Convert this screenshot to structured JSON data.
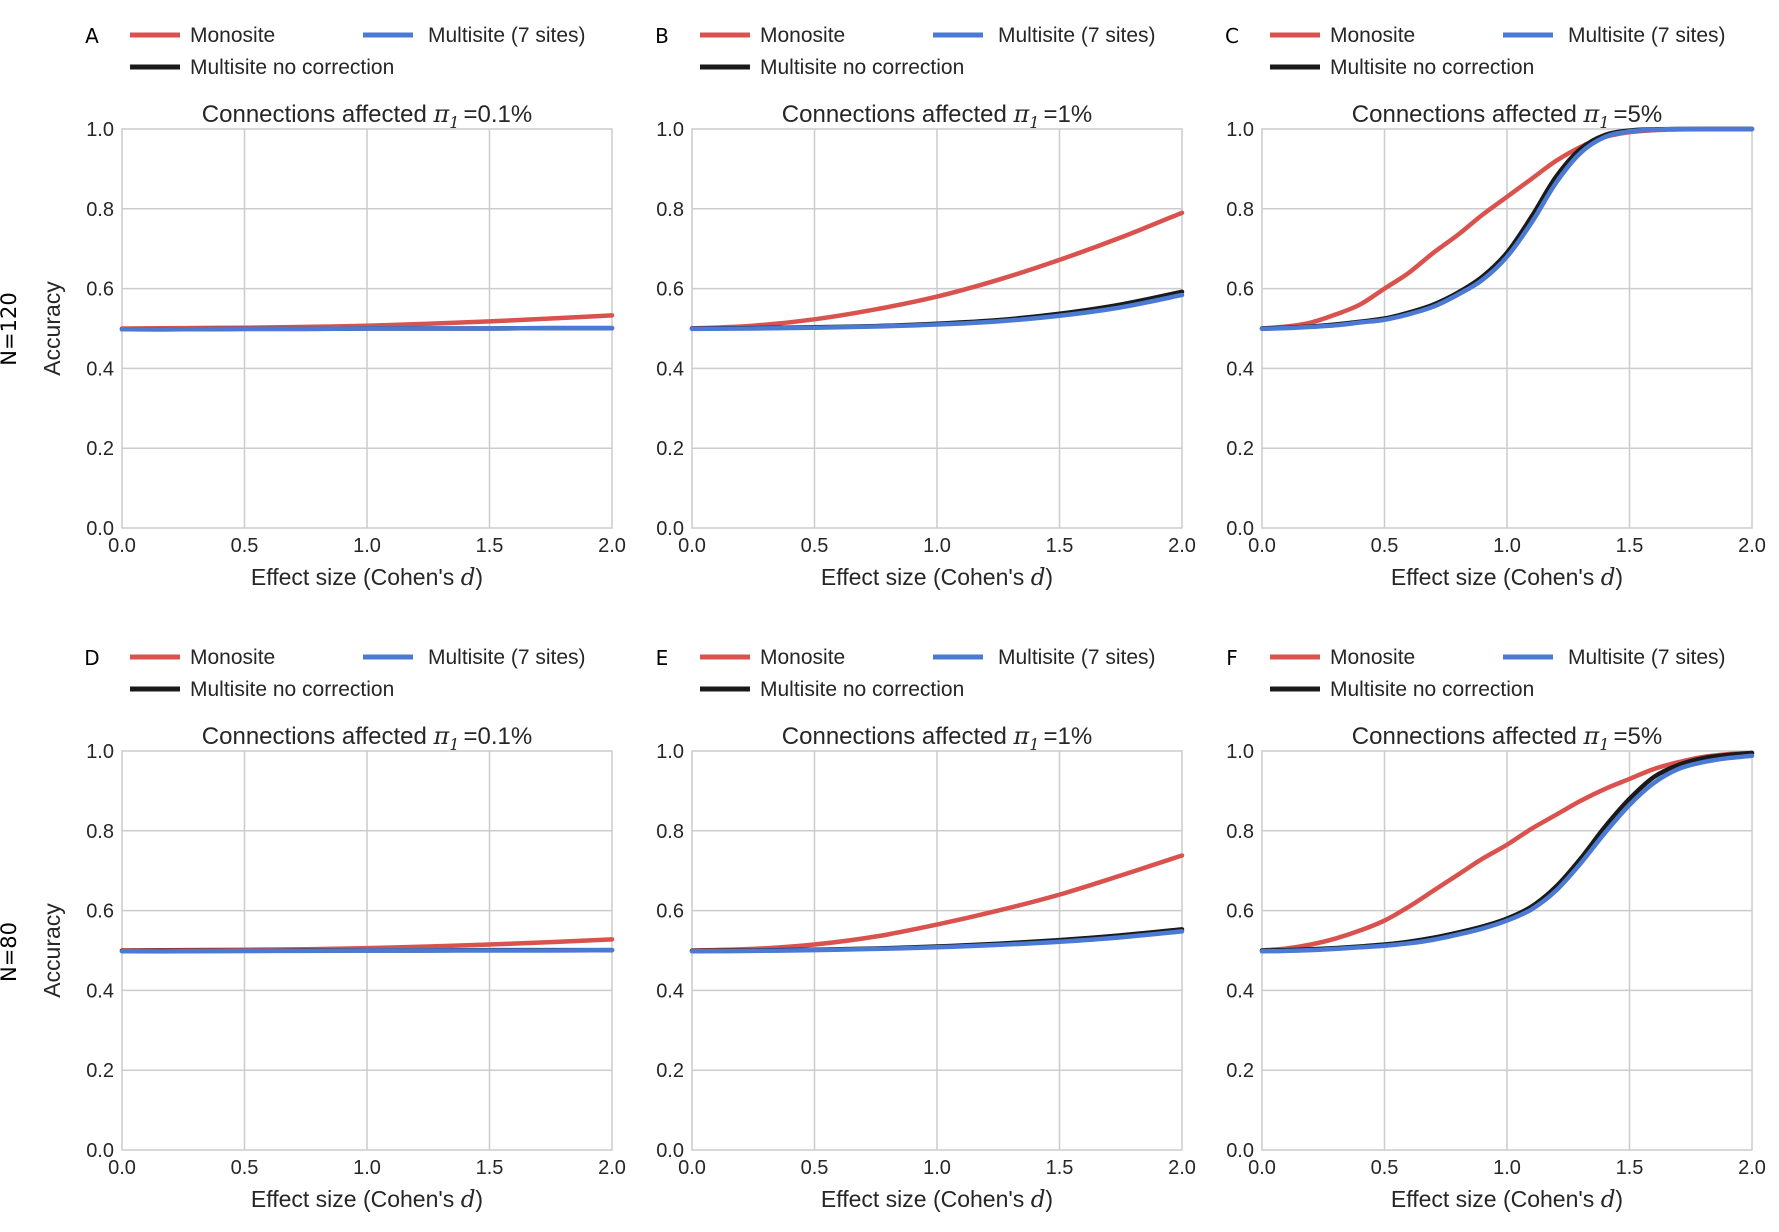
{
  "figure": {
    "row_labels": [
      "N=120",
      "N=80"
    ]
  },
  "legend": {
    "items": [
      {
        "key": "monosite",
        "label": "Monosite",
        "color": "#d9524e"
      },
      {
        "key": "multisite",
        "label": "Multisite (7 sites)",
        "color": "#4a7ad4"
      },
      {
        "key": "nocorrection",
        "label": "Multisite no correction",
        "color": "#1a1a1a"
      }
    ]
  },
  "chart_data": [
    {
      "panel": "A",
      "row": 0,
      "col": 0,
      "type": "line",
      "title_prefix": "Connections affected",
      "title_symbol": "π",
      "title_subscript": "1",
      "title_value": "=0.1%",
      "xlabel_prefix": "Effect size (Cohen's",
      "xlabel_symbol": "d",
      "xlabel_suffix": ")",
      "ylabel": "Accuracy",
      "xlim": [
        0.0,
        2.0
      ],
      "ylim": [
        0.0,
        1.0
      ],
      "x_ticks": [
        "0.0",
        "0.5",
        "1.0",
        "1.5",
        "2.0"
      ],
      "y_ticks": [
        "0.0",
        "0.2",
        "0.4",
        "0.6",
        "0.8",
        "1.0"
      ],
      "x": [
        0.0,
        0.25,
        0.5,
        0.75,
        1.0,
        1.25,
        1.5,
        1.75,
        2.0
      ],
      "series": [
        {
          "name": "Monosite",
          "values": [
            0.5,
            0.501,
            0.502,
            0.504,
            0.507,
            0.512,
            0.518,
            0.525,
            0.533
          ]
        },
        {
          "name": "Multisite no correction",
          "values": [
            0.498,
            0.498,
            0.499,
            0.499,
            0.5,
            0.5,
            0.5,
            0.501,
            0.501
          ]
        },
        {
          "name": "Multisite (7 sites)",
          "values": [
            0.498,
            0.498,
            0.499,
            0.499,
            0.5,
            0.5,
            0.5,
            0.501,
            0.501
          ]
        }
      ]
    },
    {
      "panel": "B",
      "row": 0,
      "col": 1,
      "type": "line",
      "title_prefix": "Connections affected",
      "title_symbol": "π",
      "title_subscript": "1",
      "title_value": "=1%",
      "xlabel_prefix": "Effect size (Cohen's",
      "xlabel_symbol": "d",
      "xlabel_suffix": ")",
      "ylabel": "",
      "xlim": [
        0.0,
        2.0
      ],
      "ylim": [
        0.0,
        1.0
      ],
      "x_ticks": [
        "0.0",
        "0.5",
        "1.0",
        "1.5",
        "2.0"
      ],
      "y_ticks": [
        "0.0",
        "0.2",
        "0.4",
        "0.6",
        "0.8",
        "1.0"
      ],
      "x": [
        0.0,
        0.25,
        0.5,
        0.75,
        1.0,
        1.25,
        1.5,
        1.75,
        2.0
      ],
      "series": [
        {
          "name": "Monosite",
          "values": [
            0.5,
            0.507,
            0.523,
            0.548,
            0.58,
            0.622,
            0.672,
            0.728,
            0.79
          ]
        },
        {
          "name": "Multisite no correction",
          "values": [
            0.5,
            0.501,
            0.503,
            0.506,
            0.512,
            0.521,
            0.537,
            0.56,
            0.592
          ]
        },
        {
          "name": "Multisite (7 sites)",
          "values": [
            0.499,
            0.5,
            0.502,
            0.505,
            0.51,
            0.518,
            0.532,
            0.553,
            0.584
          ]
        }
      ]
    },
    {
      "panel": "C",
      "row": 0,
      "col": 2,
      "type": "line",
      "title_prefix": "Connections affected",
      "title_symbol": "π",
      "title_subscript": "1",
      "title_value": "=5%",
      "xlabel_prefix": "Effect size (Cohen's",
      "xlabel_symbol": "d",
      "xlabel_suffix": ")",
      "ylabel": "",
      "xlim": [
        0.0,
        2.0
      ],
      "ylim": [
        0.0,
        1.0
      ],
      "x_ticks": [
        "0.0",
        "0.5",
        "1.0",
        "1.5",
        "2.0"
      ],
      "y_ticks": [
        "0.0",
        "0.2",
        "0.4",
        "0.6",
        "0.8",
        "1.0"
      ],
      "x": [
        0.0,
        0.1,
        0.2,
        0.3,
        0.4,
        0.5,
        0.6,
        0.7,
        0.8,
        0.9,
        1.0,
        1.1,
        1.2,
        1.3,
        1.4,
        1.5,
        1.6,
        1.7,
        1.8,
        1.9,
        2.0
      ],
      "series": [
        {
          "name": "Monosite",
          "values": [
            0.5,
            0.505,
            0.515,
            0.535,
            0.56,
            0.6,
            0.64,
            0.69,
            0.735,
            0.785,
            0.83,
            0.875,
            0.92,
            0.955,
            0.98,
            0.992,
            0.997,
            0.999,
            1.0,
            1.0,
            1.0
          ]
        },
        {
          "name": "Multisite no correction",
          "values": [
            0.5,
            0.502,
            0.505,
            0.51,
            0.517,
            0.525,
            0.54,
            0.56,
            0.59,
            0.63,
            0.69,
            0.78,
            0.88,
            0.95,
            0.985,
            0.996,
            0.999,
            1.0,
            1.0,
            1.0,
            1.0
          ]
        },
        {
          "name": "Multisite (7 sites)",
          "values": [
            0.499,
            0.501,
            0.504,
            0.508,
            0.515,
            0.522,
            0.536,
            0.555,
            0.585,
            0.622,
            0.68,
            0.765,
            0.865,
            0.94,
            0.98,
            0.994,
            0.998,
            1.0,
            1.0,
            1.0,
            1.0
          ]
        }
      ]
    },
    {
      "panel": "D",
      "row": 1,
      "col": 0,
      "type": "line",
      "title_prefix": "Connections affected",
      "title_symbol": "π",
      "title_subscript": "1",
      "title_value": "=0.1%",
      "xlabel_prefix": "Effect size (Cohen's",
      "xlabel_symbol": "d",
      "xlabel_suffix": ")",
      "ylabel": "Accuracy",
      "xlim": [
        0.0,
        2.0
      ],
      "ylim": [
        0.0,
        1.0
      ],
      "x_ticks": [
        "0.0",
        "0.5",
        "1.0",
        "1.5",
        "2.0"
      ],
      "y_ticks": [
        "0.0",
        "0.2",
        "0.4",
        "0.6",
        "0.8",
        "1.0"
      ],
      "x": [
        0.0,
        0.25,
        0.5,
        0.75,
        1.0,
        1.25,
        1.5,
        1.75,
        2.0
      ],
      "series": [
        {
          "name": "Monosite",
          "values": [
            0.5,
            0.501,
            0.502,
            0.503,
            0.506,
            0.51,
            0.515,
            0.521,
            0.528
          ]
        },
        {
          "name": "Multisite no correction",
          "values": [
            0.499,
            0.499,
            0.499,
            0.5,
            0.5,
            0.5,
            0.501,
            0.501,
            0.501
          ]
        },
        {
          "name": "Multisite (7 sites)",
          "values": [
            0.498,
            0.498,
            0.499,
            0.499,
            0.5,
            0.5,
            0.5,
            0.5,
            0.501
          ]
        }
      ]
    },
    {
      "panel": "E",
      "row": 1,
      "col": 1,
      "type": "line",
      "title_prefix": "Connections affected",
      "title_symbol": "π",
      "title_subscript": "1",
      "title_value": "=1%",
      "xlabel_prefix": "Effect size (Cohen's",
      "xlabel_symbol": "d",
      "xlabel_suffix": ")",
      "ylabel": "",
      "xlim": [
        0.0,
        2.0
      ],
      "ylim": [
        0.0,
        1.0
      ],
      "x_ticks": [
        "0.0",
        "0.5",
        "1.0",
        "1.5",
        "2.0"
      ],
      "y_ticks": [
        "0.0",
        "0.2",
        "0.4",
        "0.6",
        "0.8",
        "1.0"
      ],
      "x": [
        0.0,
        0.25,
        0.5,
        0.75,
        1.0,
        1.25,
        1.5,
        1.75,
        2.0
      ],
      "series": [
        {
          "name": "Monosite",
          "values": [
            0.5,
            0.504,
            0.515,
            0.535,
            0.565,
            0.6,
            0.64,
            0.688,
            0.738
          ]
        },
        {
          "name": "Multisite no correction",
          "values": [
            0.499,
            0.5,
            0.502,
            0.505,
            0.51,
            0.517,
            0.526,
            0.538,
            0.553
          ]
        },
        {
          "name": "Multisite (7 sites)",
          "values": [
            0.498,
            0.499,
            0.501,
            0.504,
            0.508,
            0.514,
            0.522,
            0.533,
            0.548
          ]
        }
      ]
    },
    {
      "panel": "F",
      "row": 1,
      "col": 2,
      "type": "line",
      "title_prefix": "Connections affected",
      "title_symbol": "π",
      "title_subscript": "1",
      "title_value": "=5%",
      "xlabel_prefix": "Effect size (Cohen's",
      "xlabel_symbol": "d",
      "xlabel_suffix": ")",
      "ylabel": "",
      "xlim": [
        0.0,
        2.0
      ],
      "ylim": [
        0.0,
        1.0
      ],
      "x_ticks": [
        "0.0",
        "0.5",
        "1.0",
        "1.5",
        "2.0"
      ],
      "y_ticks": [
        "0.0",
        "0.2",
        "0.4",
        "0.6",
        "0.8",
        "1.0"
      ],
      "x": [
        0.0,
        0.1,
        0.2,
        0.3,
        0.4,
        0.5,
        0.6,
        0.7,
        0.8,
        0.9,
        1.0,
        1.1,
        1.2,
        1.3,
        1.4,
        1.5,
        1.6,
        1.7,
        1.8,
        1.9,
        2.0
      ],
      "series": [
        {
          "name": "Monosite",
          "values": [
            0.5,
            0.505,
            0.515,
            0.53,
            0.55,
            0.575,
            0.61,
            0.65,
            0.69,
            0.73,
            0.765,
            0.805,
            0.84,
            0.875,
            0.905,
            0.93,
            0.955,
            0.972,
            0.985,
            0.992,
            0.995
          ]
        },
        {
          "name": "Multisite no correction",
          "values": [
            0.5,
            0.501,
            0.503,
            0.506,
            0.51,
            0.515,
            0.522,
            0.532,
            0.545,
            0.56,
            0.58,
            0.61,
            0.66,
            0.73,
            0.81,
            0.88,
            0.935,
            0.965,
            0.982,
            0.99,
            0.995
          ]
        },
        {
          "name": "Multisite (7 sites)",
          "values": [
            0.498,
            0.499,
            0.501,
            0.504,
            0.508,
            0.512,
            0.518,
            0.527,
            0.54,
            0.555,
            0.575,
            0.603,
            0.65,
            0.718,
            0.795,
            0.865,
            0.92,
            0.955,
            0.972,
            0.982,
            0.988
          ]
        }
      ]
    }
  ]
}
